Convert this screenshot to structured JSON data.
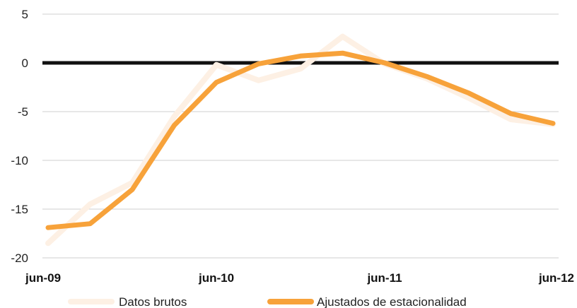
{
  "chart_data": {
    "type": "line",
    "title": "",
    "xlabel": "",
    "ylabel": "",
    "ylim": [
      -20,
      5
    ],
    "yticks": [
      5,
      0,
      -5,
      -10,
      -15,
      -20
    ],
    "xtick_labels": [
      {
        "label": "jun-09",
        "x": 0
      },
      {
        "label": "jun-10",
        "x": 4
      },
      {
        "label": "jun-11",
        "x": 8
      },
      {
        "label": "jun-12",
        "x": 12
      }
    ],
    "grid": true,
    "zero_line": true,
    "legend_position": "bottom",
    "series": [
      {
        "name": "Datos brutos",
        "color": "#fdf0e4",
        "x": [
          0,
          1,
          2,
          3,
          4,
          5,
          6,
          7,
          8,
          9,
          10,
          11,
          12
        ],
        "values": [
          -18.5,
          -14.5,
          -12.3,
          -5.5,
          -0.2,
          -1.8,
          -0.6,
          2.7,
          -0.1,
          -1.6,
          -3.6,
          -5.8,
          -6.3
        ]
      },
      {
        "name": "Ajustados de estacionalidad",
        "color": "#f7a23a",
        "x": [
          0,
          1,
          2,
          3,
          4,
          5,
          6,
          7,
          8,
          9,
          10,
          11,
          12
        ],
        "values": [
          -16.9,
          -16.5,
          -13.0,
          -6.4,
          -2.0,
          -0.1,
          0.7,
          1.0,
          0.0,
          -1.4,
          -3.1,
          -5.2,
          -6.2
        ]
      }
    ]
  }
}
